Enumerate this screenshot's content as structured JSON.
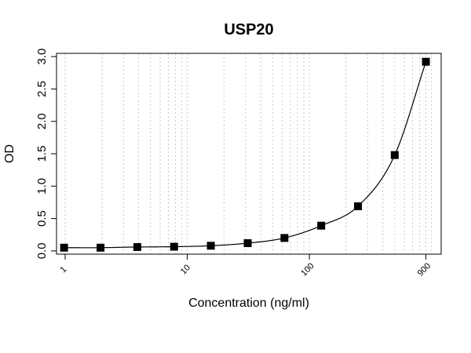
{
  "chart_data": {
    "type": "scatter",
    "title": "USP20",
    "xlabel": "Concentration (ng/ml)",
    "ylabel": "OD",
    "x_scale": "log",
    "xlim": [
      0.85,
      1200
    ],
    "ylim": [
      -0.05,
      3.05
    ],
    "x_tick_values": [
      1,
      10,
      100,
      900
    ],
    "x_tick_labels": [
      "1",
      "10",
      "100",
      "900"
    ],
    "y_tick_values": [
      0.0,
      0.5,
      1.0,
      1.5,
      2.0,
      2.5,
      3.0
    ],
    "y_tick_labels": [
      "0.0",
      "0.5",
      "1.0",
      "1.5",
      "2.0",
      "2.5",
      "3.0"
    ],
    "grid": "vertical-dotted",
    "series": [
      {
        "marker": "square",
        "fit_curve": true,
        "x": [
          0.98,
          1.95,
          3.9,
          7.8,
          15.6,
          31.25,
          62.5,
          125,
          250,
          500,
          900
        ],
        "y": [
          0.05,
          0.05,
          0.06,
          0.065,
          0.08,
          0.12,
          0.2,
          0.39,
          0.69,
          1.48,
          2.92
        ]
      }
    ]
  }
}
